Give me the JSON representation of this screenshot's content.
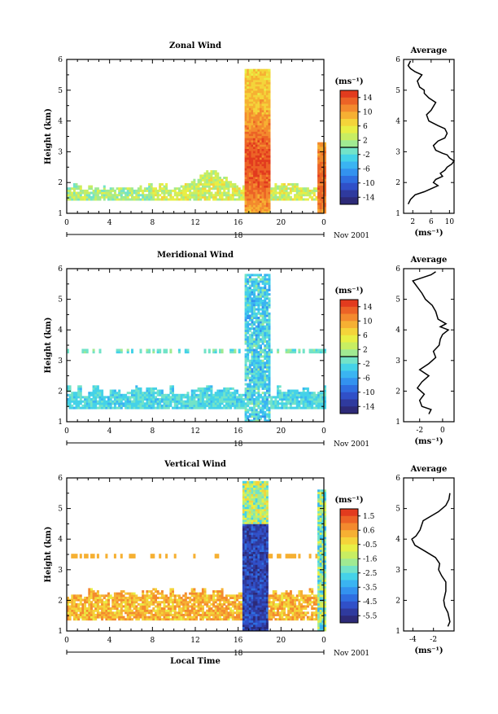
{
  "chart_data": [
    {
      "type": "heatmap",
      "title": "Zonal Wind",
      "ylabel": "Height (km)",
      "y_ticks": [
        "1",
        "2",
        "3",
        "4",
        "5",
        "6"
      ],
      "ylim": [
        1,
        6
      ],
      "x_ticks": [
        "0",
        "4",
        "8",
        "12",
        "16",
        "20",
        "0"
      ],
      "xlim": [
        0,
        24
      ],
      "day_label": "18",
      "date_label": "Nov 2001",
      "colorbar": {
        "unit_label": "(ms⁻¹)",
        "tick_labels": [
          "14",
          "10",
          "6",
          "2",
          "-2",
          "-6",
          "-10",
          "-14"
        ],
        "range": [
          -16,
          16
        ],
        "zero_line": 0
      },
      "profile": {
        "title": "Average",
        "xlabel": "(ms⁻¹)",
        "x_ticks": [
          "2",
          "6",
          "10"
        ],
        "xlim": [
          0,
          11
        ],
        "ylim": [
          1,
          6
        ],
        "y_ticks": [
          "1",
          "2",
          "3",
          "4",
          "5",
          "6"
        ],
        "points": [
          [
            1.0,
            1.3
          ],
          [
            1.5,
            1.45
          ],
          [
            2.5,
            1.6
          ],
          [
            4.5,
            1.7
          ],
          [
            6.0,
            1.8
          ],
          [
            7.5,
            1.9
          ],
          [
            6.5,
            2.0
          ],
          [
            7.0,
            2.1
          ],
          [
            8.5,
            2.2
          ],
          [
            8.0,
            2.3
          ],
          [
            9.0,
            2.4
          ],
          [
            9.5,
            2.5
          ],
          [
            10.5,
            2.6
          ],
          [
            11.0,
            2.7
          ],
          [
            10.0,
            2.8
          ],
          [
            9.5,
            2.9
          ],
          [
            8.5,
            2.95
          ],
          [
            7.0,
            3.05
          ],
          [
            6.5,
            3.2
          ],
          [
            7.5,
            3.35
          ],
          [
            9.0,
            3.45
          ],
          [
            9.5,
            3.6
          ],
          [
            9.0,
            3.75
          ],
          [
            7.5,
            3.85
          ],
          [
            5.5,
            4.0
          ],
          [
            5.0,
            4.2
          ],
          [
            6.0,
            4.35
          ],
          [
            7.0,
            4.6
          ],
          [
            5.5,
            4.75
          ],
          [
            4.5,
            4.9
          ],
          [
            4.5,
            5.0
          ],
          [
            3.5,
            5.1
          ],
          [
            3.0,
            5.3
          ],
          [
            4.0,
            5.5
          ],
          [
            2.5,
            5.6
          ],
          [
            1.5,
            5.7
          ],
          [
            1.0,
            5.8
          ],
          [
            1.5,
            5.95
          ]
        ]
      }
    },
    {
      "type": "heatmap",
      "title": "Meridional Wind",
      "ylabel": "Height (km)",
      "y_ticks": [
        "1",
        "2",
        "3",
        "4",
        "5",
        "6"
      ],
      "ylim": [
        1,
        6
      ],
      "x_ticks": [
        "0",
        "4",
        "8",
        "12",
        "16",
        "20",
        "0"
      ],
      "xlim": [
        0,
        24
      ],
      "day_label": "18",
      "date_label": "Nov 2001",
      "colorbar": {
        "unit_label": "(ms⁻¹)",
        "tick_labels": [
          "14",
          "10",
          "6",
          "2",
          "-2",
          "-6",
          "-10",
          "-14"
        ],
        "range": [
          -16,
          16
        ],
        "zero_line": 0
      },
      "profile": {
        "title": "Average",
        "xlabel": "(ms⁻¹)",
        "x_ticks": [
          "-2",
          "0"
        ],
        "xlim": [
          -3.4,
          1.0
        ],
        "ylim": [
          1,
          6
        ],
        "y_ticks": [
          "1",
          "2",
          "3",
          "4",
          "5",
          "6"
        ],
        "points": [
          [
            -1.2,
            1.25
          ],
          [
            -1.0,
            1.4
          ],
          [
            -1.8,
            1.5
          ],
          [
            -2.0,
            1.7
          ],
          [
            -1.6,
            1.9
          ],
          [
            -2.2,
            2.1
          ],
          [
            -1.8,
            2.3
          ],
          [
            -1.2,
            2.5
          ],
          [
            -2.0,
            2.7
          ],
          [
            -1.2,
            2.9
          ],
          [
            -0.6,
            3.1
          ],
          [
            -0.8,
            3.3
          ],
          [
            -0.3,
            3.5
          ],
          [
            -0.2,
            3.7
          ],
          [
            0.0,
            3.85
          ],
          [
            0.5,
            4.0
          ],
          [
            -0.2,
            4.1
          ],
          [
            0.3,
            4.2
          ],
          [
            -0.4,
            4.35
          ],
          [
            -0.6,
            4.6
          ],
          [
            -0.9,
            4.8
          ],
          [
            -1.5,
            5.0
          ],
          [
            -1.8,
            5.2
          ],
          [
            -2.2,
            5.4
          ],
          [
            -2.6,
            5.6
          ],
          [
            -1.0,
            5.8
          ],
          [
            -0.6,
            5.9
          ]
        ]
      }
    },
    {
      "type": "heatmap",
      "title": "Vertical Wind",
      "ylabel": "Height (km)",
      "y_ticks": [
        "1",
        "2",
        "3",
        "4",
        "5",
        "6"
      ],
      "ylim": [
        1,
        6
      ],
      "x_ticks": [
        "0",
        "4",
        "8",
        "12",
        "16",
        "20",
        "0"
      ],
      "xlim": [
        0,
        24
      ],
      "day_label": "18",
      "date_label": "Nov 2001",
      "xlabel": "Local Time",
      "colorbar": {
        "unit_label": "(ms⁻¹)",
        "tick_labels": [
          "1.5",
          "0.6",
          "-0.5",
          "-1.6",
          "-2.5",
          "-3.5",
          "-4.5",
          "-5.5"
        ],
        "range": [
          -6.0,
          2.0
        ],
        "zero_line": null
      },
      "profile": {
        "title": "Average",
        "xlabel": "(ms⁻¹)",
        "x_ticks": [
          "-4",
          "-2"
        ],
        "xlim": [
          -4.9,
          0.0
        ],
        "ylim": [
          1,
          6
        ],
        "y_ticks": [
          "1",
          "2",
          "3",
          "4",
          "5",
          "6"
        ],
        "points": [
          [
            -0.6,
            1.15
          ],
          [
            -0.4,
            1.3
          ],
          [
            -0.6,
            1.6
          ],
          [
            -0.9,
            1.8
          ],
          [
            -1.0,
            2.0
          ],
          [
            -0.8,
            2.3
          ],
          [
            -0.8,
            2.6
          ],
          [
            -1.2,
            2.8
          ],
          [
            -1.5,
            3.0
          ],
          [
            -1.4,
            3.2
          ],
          [
            -1.8,
            3.4
          ],
          [
            -2.8,
            3.6
          ],
          [
            -3.8,
            3.8
          ],
          [
            -4.1,
            4.0
          ],
          [
            -3.7,
            4.1
          ],
          [
            -3.3,
            4.3
          ],
          [
            -3.0,
            4.6
          ],
          [
            -2.0,
            4.8
          ],
          [
            -1.5,
            4.9
          ],
          [
            -0.8,
            5.1
          ],
          [
            -0.5,
            5.3
          ],
          [
            -0.4,
            5.5
          ]
        ]
      }
    }
  ]
}
